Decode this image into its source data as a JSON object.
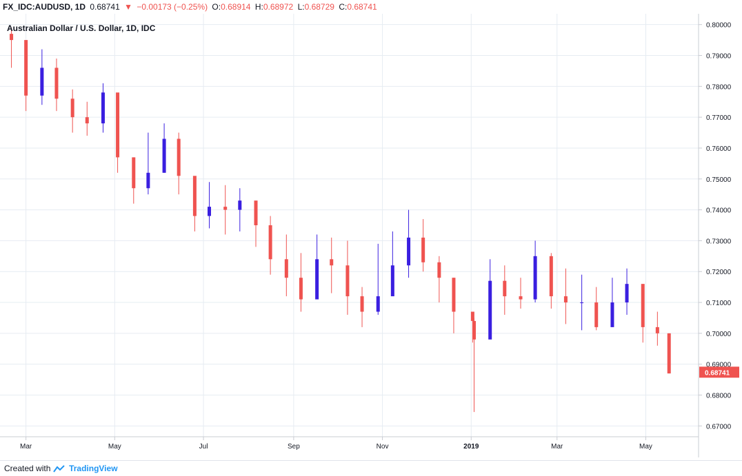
{
  "header": {
    "symbol": "FX_IDC:AUDUSD, 1D",
    "last": "0.68741",
    "change": "−0.00173 (−0.25%)",
    "o_label": "O:",
    "o_val": "0.68914",
    "h_label": "H:",
    "h_val": "0.68972",
    "l_label": "L:",
    "l_val": "0.68729",
    "c_label": "C:",
    "c_val": "0.68741"
  },
  "footer": {
    "created": "Created with",
    "brand": "TradingView"
  },
  "colors": {
    "up": "#3a1fe0",
    "down": "#ef5350",
    "grid": "#e6ecf2",
    "price_tag": "#ef5350"
  },
  "chart_data": {
    "type": "candlestick",
    "title": "Australian Dollar / U.S. Dollar, 1D, IDC",
    "x_tick_labels": [
      "Mar",
      "May",
      "Jul",
      "Sep",
      "Nov",
      "2019",
      "Mar",
      "May"
    ],
    "y_ticks": [
      "0.80000",
      "0.79000",
      "0.78000",
      "0.77000",
      "0.76000",
      "0.75000",
      "0.74000",
      "0.73000",
      "0.72000",
      "0.71000",
      "0.70000",
      "0.69000",
      "0.68000",
      "0.67000"
    ],
    "ylim": [
      0.6665,
      0.8035
    ],
    "last_price": "0.68741",
    "x": [
      "2018-02-19",
      "2018-03-01",
      "2018-03-12",
      "2018-03-22",
      "2018-04-02",
      "2018-04-12",
      "2018-04-23",
      "2018-05-03",
      "2018-05-14",
      "2018-05-24",
      "2018-06-04",
      "2018-06-14",
      "2018-06-25",
      "2018-07-05",
      "2018-07-16",
      "2018-07-26",
      "2018-08-06",
      "2018-08-16",
      "2018-08-27",
      "2018-09-06",
      "2018-09-17",
      "2018-09-27",
      "2018-10-08",
      "2018-10-18",
      "2018-10-29",
      "2018-11-08",
      "2018-11-19",
      "2018-11-29",
      "2018-12-10",
      "2018-12-20",
      "2019-01-02",
      "2019-01-03",
      "2019-01-14",
      "2019-01-24",
      "2019-02-04",
      "2019-02-14",
      "2019-02-25",
      "2019-03-07",
      "2019-03-18",
      "2019-03-28",
      "2019-04-08",
      "2019-04-18",
      "2019-04-29",
      "2019-05-09",
      "2019-05-17"
    ],
    "close": [
      0.795,
      0.777,
      0.786,
      0.776,
      0.77,
      0.768,
      0.778,
      0.757,
      0.747,
      0.752,
      0.763,
      0.751,
      0.738,
      0.741,
      0.74,
      0.743,
      0.735,
      0.724,
      0.718,
      0.711,
      0.724,
      0.722,
      0.712,
      0.707,
      0.712,
      0.722,
      0.731,
      0.723,
      0.718,
      0.707,
      0.704,
      0.698,
      0.717,
      0.712,
      0.711,
      0.725,
      0.712,
      0.71,
      0.71,
      0.702,
      0.71,
      0.716,
      0.702,
      0.7,
      0.687
    ],
    "high": [
      0.799,
      0.79,
      0.792,
      0.789,
      0.779,
      0.775,
      0.781,
      0.77,
      0.757,
      0.765,
      0.768,
      0.765,
      0.747,
      0.749,
      0.748,
      0.747,
      0.74,
      0.738,
      0.732,
      0.726,
      0.732,
      0.731,
      0.73,
      0.715,
      0.729,
      0.733,
      0.74,
      0.737,
      0.725,
      0.718,
      0.707,
      0.705,
      0.724,
      0.722,
      0.718,
      0.73,
      0.726,
      0.721,
      0.719,
      0.715,
      0.718,
      0.721,
      0.712,
      0.707,
      0.7
    ],
    "low": [
      0.786,
      0.772,
      0.774,
      0.772,
      0.765,
      0.764,
      0.765,
      0.752,
      0.742,
      0.745,
      0.752,
      0.745,
      0.733,
      0.734,
      0.732,
      0.733,
      0.728,
      0.719,
      0.712,
      0.707,
      0.712,
      0.713,
      0.706,
      0.702,
      0.706,
      0.713,
      0.718,
      0.72,
      0.71,
      0.7,
      0.697,
      0.6745,
      0.702,
      0.706,
      0.708,
      0.71,
      0.708,
      0.703,
      0.701,
      0.701,
      0.703,
      0.706,
      0.697,
      0.696,
      0.687
    ]
  }
}
